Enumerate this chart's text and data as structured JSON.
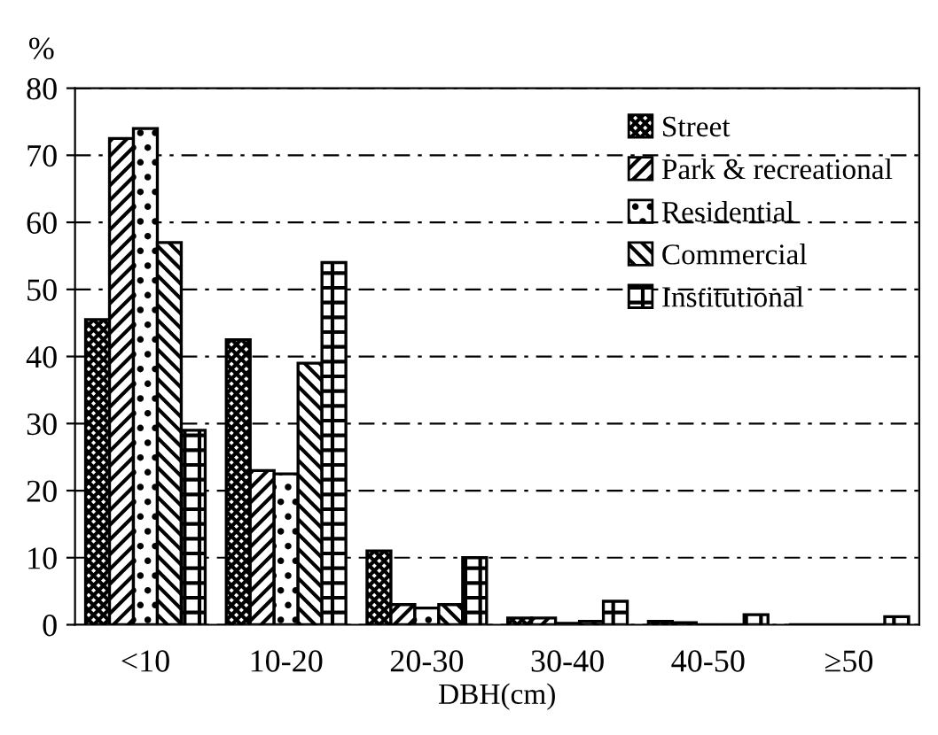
{
  "chart_data": {
    "type": "bar",
    "xlabel": "DBH(cm)",
    "ylabel": "%",
    "categories": [
      "<10",
      "10-20",
      "20-30",
      "30-40",
      "40-50",
      "≥50"
    ],
    "series": [
      {
        "name": "Street",
        "color": "#000000",
        "values": [
          45.5,
          42.5,
          11,
          1,
          0.5,
          0
        ]
      },
      {
        "name": "Park & recreational",
        "color": "#000000",
        "values": [
          72.5,
          23,
          3,
          1,
          0.3,
          0
        ]
      },
      {
        "name": "Residential",
        "color": "#000000",
        "values": [
          74,
          22.5,
          2.5,
          0.2,
          0,
          0
        ]
      },
      {
        "name": "Commercial",
        "color": "#000000",
        "values": [
          57,
          39,
          3,
          0.5,
          0,
          0
        ]
      },
      {
        "name": "Institutional",
        "color": "#000000",
        "values": [
          29,
          54,
          10,
          3.5,
          1.5,
          1.2
        ]
      }
    ],
    "ylim": [
      0,
      80
    ],
    "yticks": [
      0,
      10,
      20,
      30,
      40,
      50,
      60,
      70,
      80
    ],
    "grid": "y",
    "legend": "top right"
  }
}
